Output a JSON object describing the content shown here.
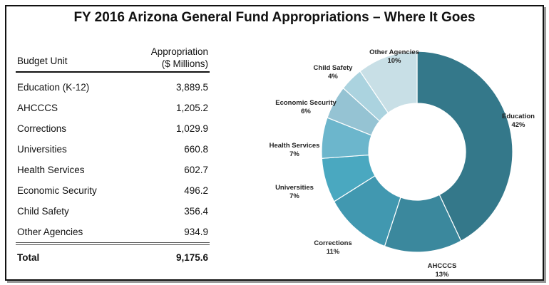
{
  "title": "FY 2016 Arizona General Fund Appropriations – Where It Goes",
  "table": {
    "col_unit": "Budget Unit",
    "col_amount_line1": "Appropriation",
    "col_amount_line2": "($ Millions)",
    "rows": [
      {
        "unit": "Education (K-12)",
        "amount": "3,889.5"
      },
      {
        "unit": "AHCCCS",
        "amount": "1,205.2"
      },
      {
        "unit": "Corrections",
        "amount": "1,029.9"
      },
      {
        "unit": "Universities",
        "amount": "660.8"
      },
      {
        "unit": "Health Services",
        "amount": "602.7"
      },
      {
        "unit": "Economic Security",
        "amount": "496.2"
      },
      {
        "unit": "Child Safety",
        "amount": "356.4"
      },
      {
        "unit": "Other Agencies",
        "amount": "934.9"
      }
    ],
    "total_label": "Total",
    "total_amount": "9,175.6"
  },
  "chart_data": {
    "type": "pie",
    "donut": true,
    "categories": [
      "Education",
      "AHCCCS",
      "Corrections",
      "Universities",
      "Health Services",
      "Economic Security",
      "Child Safety",
      "Other Agencies"
    ],
    "values": [
      3889.5,
      1205.2,
      1029.9,
      660.8,
      602.7,
      496.2,
      356.4,
      934.9
    ],
    "labels": [
      "42%",
      "13%",
      "11%",
      "7%",
      "7%",
      "6%",
      "4%",
      "10%"
    ],
    "colors": [
      "#34788a",
      "#3b889d",
      "#4198b0",
      "#4aa8c0",
      "#6cb6cc",
      "#95c3d3",
      "#abd3df",
      "#c8dfe6"
    ]
  }
}
